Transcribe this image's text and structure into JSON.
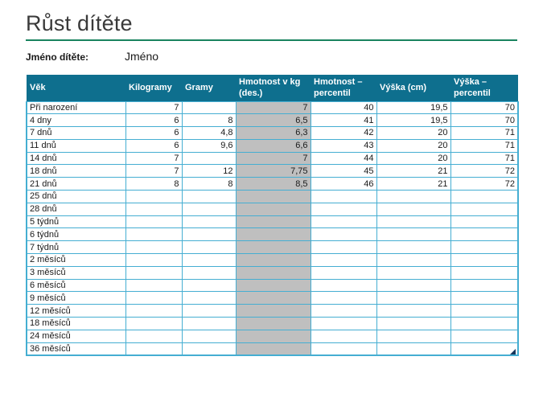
{
  "page": {
    "title": "Růst dítěte",
    "name_label": "Jméno dítěte:",
    "name_value": "Jméno"
  },
  "table": {
    "columns": [
      {
        "key": "vek",
        "label": "Věk"
      },
      {
        "key": "kilogramy",
        "label": "Kilogramy"
      },
      {
        "key": "gramy",
        "label": "Gramy"
      },
      {
        "key": "hmotnost-kg-des",
        "label": "Hmotnost v kg (des.)"
      },
      {
        "key": "hmotnost-percentil",
        "label": "Hmotnost – percentil"
      },
      {
        "key": "vyska-cm",
        "label": "Výška (cm)"
      },
      {
        "key": "vyska-percentil",
        "label": "Výška – percentil"
      }
    ],
    "rows": [
      [
        "Při narození",
        "7",
        "",
        "7",
        "40",
        "19,5",
        "70"
      ],
      [
        "4 dny",
        "6",
        "8",
        "6,5",
        "41",
        "19,5",
        "70"
      ],
      [
        "7 dnů",
        "6",
        "4,8",
        "6,3",
        "42",
        "20",
        "71"
      ],
      [
        "11 dnů",
        "6",
        "9,6",
        "6,6",
        "43",
        "20",
        "71"
      ],
      [
        "14 dnů",
        "7",
        "",
        "7",
        "44",
        "20",
        "71"
      ],
      [
        "18 dnů",
        "7",
        "12",
        "7,75",
        "45",
        "21",
        "72"
      ],
      [
        "21 dnů",
        "8",
        "8",
        "8,5",
        "46",
        "21",
        "72"
      ],
      [
        "25 dnů",
        "",
        "",
        "",
        "",
        "",
        ""
      ],
      [
        "28 dnů",
        "",
        "",
        "",
        "",
        "",
        ""
      ],
      [
        "5 týdnů",
        "",
        "",
        "",
        "",
        "",
        ""
      ],
      [
        "6 týdnů",
        "",
        "",
        "",
        "",
        "",
        ""
      ],
      [
        "7 týdnů",
        "",
        "",
        "",
        "",
        "",
        ""
      ],
      [
        "2 měsíců",
        "",
        "",
        "",
        "",
        "",
        ""
      ],
      [
        "3 měsíců",
        "",
        "",
        "",
        "",
        "",
        ""
      ],
      [
        "6 měsíců",
        "",
        "",
        "",
        "",
        "",
        ""
      ],
      [
        "9 měsíců",
        "",
        "",
        "",
        "",
        "",
        ""
      ],
      [
        "12 měsíců",
        "",
        "",
        "",
        "",
        "",
        ""
      ],
      [
        "18 měsíců",
        "",
        "",
        "",
        "",
        "",
        ""
      ],
      [
        "24 měsíců",
        "",
        "",
        "",
        "",
        "",
        ""
      ],
      [
        "36 měsíců",
        "",
        "",
        "",
        "",
        "",
        ""
      ]
    ]
  },
  "colors": {
    "header_bg": "#0e6f8e",
    "grid_border": "#45aed2",
    "calc_col_bg": "#bfbfbf",
    "title_rule": "#19835f",
    "handle": "#17375d"
  }
}
